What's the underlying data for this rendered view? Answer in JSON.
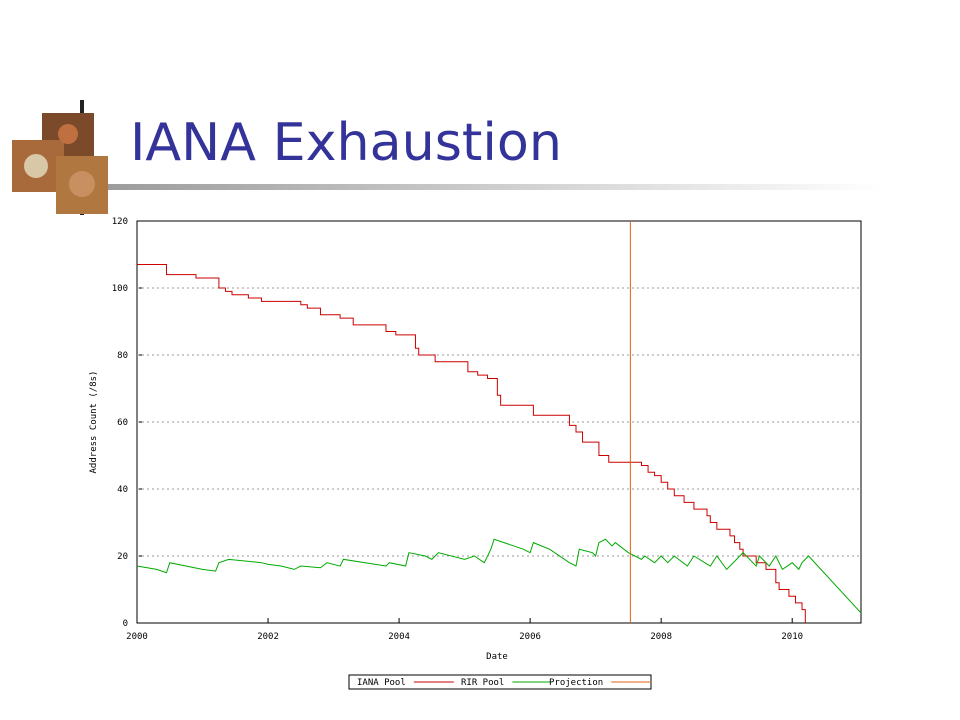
{
  "chart_data": {
    "type": "line",
    "title": "IANA Exhaustion",
    "xlabel": "Date",
    "ylabel": "Address Count (/8s)",
    "xlim": [
      2000,
      2011.05
    ],
    "xticks": [
      2000,
      2002,
      2004,
      2006,
      2008,
      2010
    ],
    "ylim": [
      0,
      120
    ],
    "yticks": [
      0,
      20,
      40,
      60,
      80,
      100,
      120
    ],
    "grid": true,
    "legend": "bottom",
    "series": [
      {
        "name": "IANA Pool",
        "color": "#cc0000",
        "step": true,
        "x": [
          2000,
          2000.45,
          2000.9,
          2001.25,
          2001.35,
          2001.45,
          2001.7,
          2001.9,
          2002.5,
          2002.6,
          2002.8,
          2003.1,
          2003.3,
          2003.8,
          2003.95,
          2004.25,
          2004.3,
          2004.55,
          2005.05,
          2005.2,
          2005.35,
          2005.5,
          2005.55,
          2006.05,
          2006.6,
          2006.7,
          2006.8,
          2007.05,
          2007.2,
          2007.7,
          2007.8,
          2007.9,
          2008.0,
          2008.1,
          2008.2,
          2008.35,
          2008.5,
          2008.7,
          2008.75,
          2008.85,
          2009.05,
          2009.12,
          2009.2,
          2009.25,
          2009.45,
          2009.6,
          2009.75,
          2009.8,
          2009.95,
          2010.05,
          2010.15,
          2010.2
        ],
        "values": [
          107,
          104,
          103,
          100,
          99,
          98,
          97,
          96,
          95,
          94,
          92,
          91,
          89,
          87,
          86,
          82,
          80,
          78,
          75,
          74,
          73,
          68,
          65,
          62,
          59,
          57,
          54,
          50,
          48,
          47,
          45,
          44,
          42,
          40,
          38,
          36,
          34,
          32,
          30,
          28,
          26,
          24,
          22,
          20,
          18,
          16,
          12,
          10,
          8,
          6,
          4,
          0
        ]
      },
      {
        "name": "RIR Pool",
        "color": "#00aa00",
        "step": false,
        "x": [
          2000,
          2000.3,
          2000.45,
          2000.5,
          2001.0,
          2001.2,
          2001.25,
          2001.4,
          2001.9,
          2002.0,
          2002.2,
          2002.4,
          2002.5,
          2002.8,
          2002.9,
          2003.1,
          2003.15,
          2003.8,
          2003.85,
          2004.1,
          2004.15,
          2004.4,
          2004.5,
          2004.6,
          2005.0,
          2005.15,
          2005.3,
          2005.4,
          2005.45,
          2005.9,
          2006.0,
          2006.05,
          2006.3,
          2006.6,
          2006.7,
          2006.75,
          2006.95,
          2007.0,
          2007.05,
          2007.15,
          2007.25,
          2007.3,
          2007.5,
          2007.7,
          2007.75,
          2007.9,
          2008.0,
          2008.1,
          2008.2,
          2008.4,
          2008.5,
          2008.75,
          2008.85,
          2009.0,
          2009.15,
          2009.25,
          2009.45,
          2009.5,
          2009.65,
          2009.75,
          2009.85,
          2010.0,
          2010.1,
          2010.15,
          2010.25,
          2011.05
        ],
        "values": [
          17,
          16,
          15,
          18,
          16,
          15.5,
          18,
          19,
          18,
          17.5,
          17,
          16,
          17,
          16.5,
          18,
          17,
          19,
          17,
          18,
          17,
          21,
          20,
          19,
          21,
          19,
          20,
          18,
          22,
          25,
          22,
          21,
          24,
          22,
          18,
          17,
          22,
          21,
          20,
          24,
          25,
          23,
          24,
          21,
          19,
          20,
          18,
          20,
          18,
          20,
          17,
          20,
          17,
          20,
          16,
          19,
          21,
          17,
          20,
          17,
          20,
          16,
          18,
          16,
          18,
          20,
          3
        ]
      },
      {
        "name": "Projection",
        "color": "#e06010",
        "step": false,
        "x": [
          2007.53,
          2007.53
        ],
        "values": [
          0,
          120
        ]
      }
    ]
  }
}
